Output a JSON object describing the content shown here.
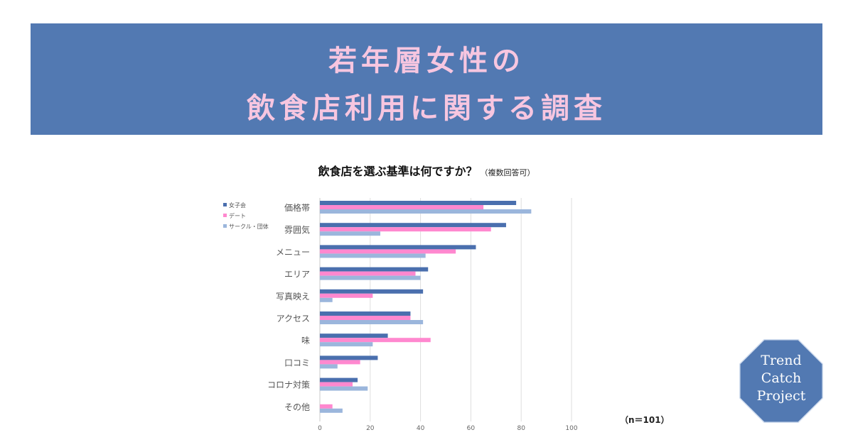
{
  "banner": {
    "line1": "若年層女性の",
    "line2": "飲食店利用に関する調査"
  },
  "chart_title": "飲食店を選ぶ基準は何ですか？",
  "chart_subtitle": "（複数回答可）",
  "sample_note": "（n＝101）",
  "badge": {
    "line1": "Trend",
    "line2": "Catch",
    "line3": "Project",
    "color": "#5279b2"
  },
  "chart_data": {
    "type": "bar",
    "orientation": "horizontal",
    "categories": [
      "価格帯",
      "雰囲気",
      "メニュー",
      "エリア",
      "写真映え",
      "アクセス",
      "味",
      "口コミ",
      "コロナ対策",
      "その他"
    ],
    "series": [
      {
        "name": "女子会",
        "color": "#4a6fae",
        "values": [
          78,
          74,
          62,
          43,
          41,
          36,
          27,
          23,
          15,
          0
        ]
      },
      {
        "name": "デート",
        "color": "#ff88cf",
        "values": [
          65,
          68,
          54,
          38,
          21,
          36,
          44,
          16,
          13,
          5
        ]
      },
      {
        "name": "サークル・団体",
        "color": "#9bb6dc",
        "values": [
          84,
          24,
          42,
          40,
          5,
          41,
          21,
          7,
          19,
          9
        ]
      }
    ],
    "xlim": [
      0,
      100
    ],
    "xticks": [
      0,
      20,
      40,
      60,
      80,
      100
    ],
    "grid": true,
    "legend_position": "top-left"
  }
}
